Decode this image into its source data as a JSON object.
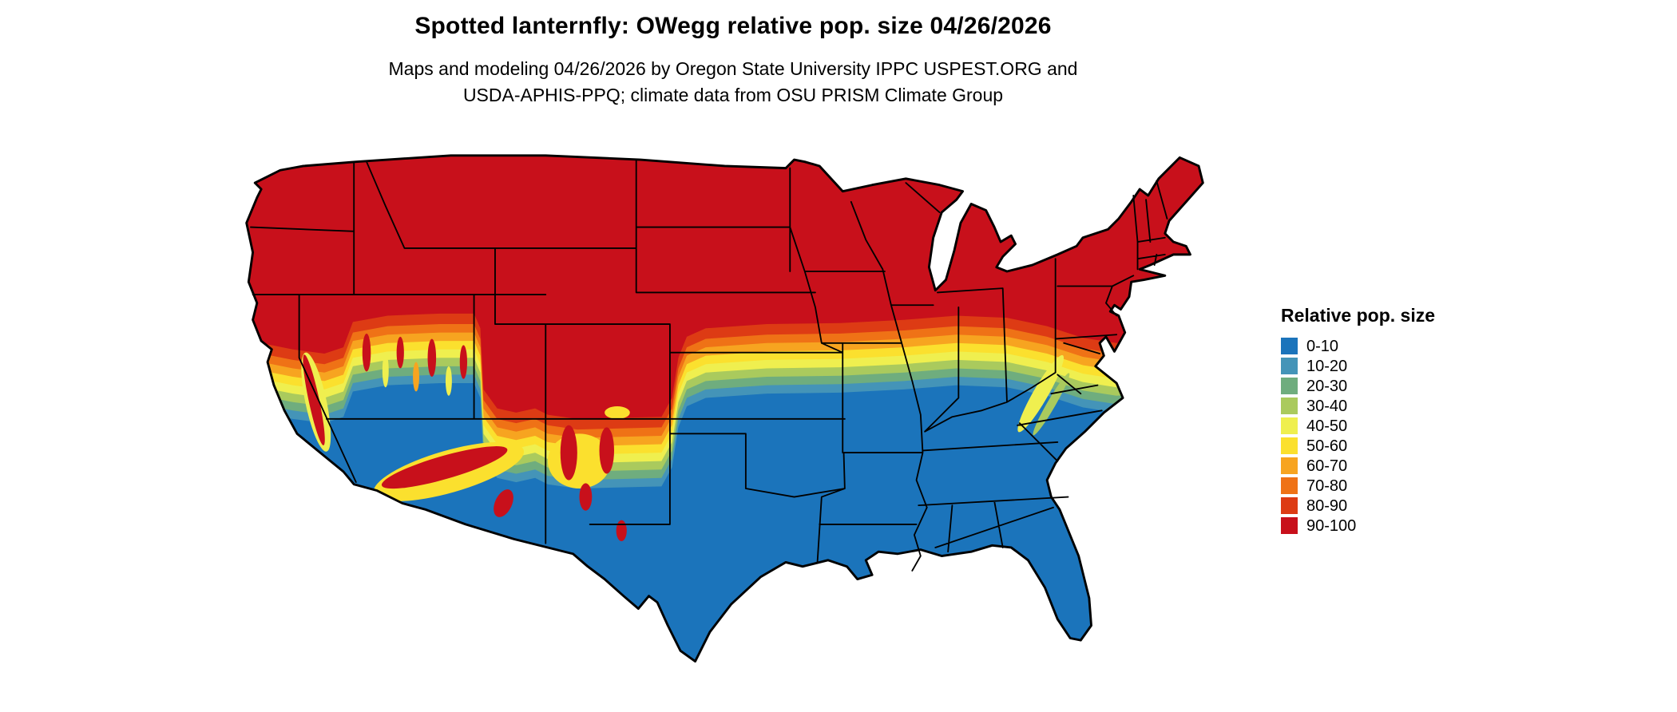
{
  "header": {
    "title": "Spotted lanternfly: OWegg relative pop. size 04/26/2026",
    "subtitle_line1": "Maps and modeling 04/26/2026 by Oregon State University IPPC USPEST.ORG and",
    "subtitle_line2": "USDA-APHIS-PPQ; climate data from OSU PRISM Climate Group"
  },
  "map": {
    "region": "Continental United States",
    "kind": "categorical raster choropleth",
    "pattern": {
      "north": "90-100 (red) across the northern states and western mountains",
      "middle": "narrow west-to-east transition band of 10-90 classes",
      "south": "0-10 (blue) across the southern states and low deserts"
    }
  },
  "legend": {
    "title": "Relative pop. size",
    "items": [
      {
        "label": "0-10",
        "color": "#1B74BB"
      },
      {
        "label": "10-20",
        "color": "#4494B8"
      },
      {
        "label": "20-30",
        "color": "#6FAD7E"
      },
      {
        "label": "30-40",
        "color": "#AACA5D"
      },
      {
        "label": "40-50",
        "color": "#EFEF4F"
      },
      {
        "label": "50-60",
        "color": "#FBE02E"
      },
      {
        "label": "60-70",
        "color": "#F7A420"
      },
      {
        "label": "70-80",
        "color": "#EF7216"
      },
      {
        "label": "80-90",
        "color": "#DD3B14"
      },
      {
        "label": "90-100",
        "color": "#C8101B"
      }
    ]
  },
  "colors": {
    "outline": "#000000",
    "background": "#FFFFFF"
  }
}
